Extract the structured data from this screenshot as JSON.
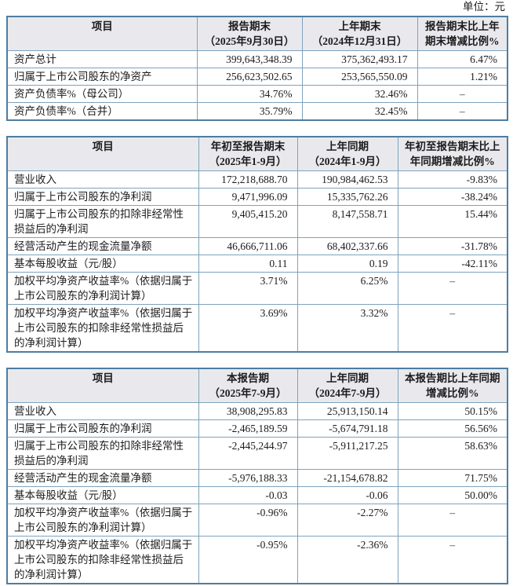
{
  "unit_label": "单位：元",
  "colors": {
    "border_outer": "#4e7da0",
    "border_inner": "#7fa2bc",
    "header_bg": "#e9e9ed",
    "text": "#1c1c1c"
  },
  "tables": [
    {
      "name": "报告期末资产状况",
      "header": [
        [
          "项目"
        ],
        [
          "报告期末",
          "（2025年9月30日）"
        ],
        [
          "上年期末",
          "（2024年12月31日）"
        ],
        [
          "报告期末比上年",
          "期末增减比例%"
        ]
      ],
      "rows": [
        [
          "资产总计",
          "399,643,348.39",
          "375,362,493.17",
          "6.47%"
        ],
        [
          "归属于上市公司股东的净资产",
          "256,623,502.65",
          "253,565,550.09",
          "1.21%"
        ],
        [
          "资产负债率%（母公司）",
          "34.76%",
          "32.46%",
          "–"
        ],
        [
          "资产负债率%（合并）",
          "35.79%",
          "32.45%",
          "–"
        ]
      ]
    },
    {
      "name": "年初至报告期末经营成果",
      "header": [
        [
          "项目"
        ],
        [
          "年初至报告期末",
          "（2025年1-9月）"
        ],
        [
          "上年同期",
          "（2024年1-9月）"
        ],
        [
          "年初至报告期末比上",
          "年同期增减比例%"
        ]
      ],
      "rows": [
        [
          "营业收入",
          "172,218,688.70",
          "190,984,462.53",
          "-9.83%"
        ],
        [
          "归属于上市公司股东的净利润",
          "9,471,996.09",
          "15,335,762.26",
          "-38.24%"
        ],
        [
          "归属于上市公司股东的扣除非经常性损益后的净利润",
          "9,405,415.20",
          "8,147,558.71",
          "15.44%"
        ],
        [
          "经营活动产生的现金流量净额",
          "46,666,711.06",
          "68,402,337.66",
          "-31.78%"
        ],
        [
          "基本每股收益（元/股）",
          "0.11",
          "0.19",
          "-42.11%"
        ],
        [
          "加权平均净资产收益率%（依据归属于上市公司股东的净利润计算）",
          "3.71%",
          "6.25%",
          "–"
        ],
        [
          "加权平均净资产收益率%（依据归属于上市公司股东的扣除非经常性损益后的净利润计算）",
          "3.69%",
          "3.32%",
          "–"
        ]
      ]
    },
    {
      "name": "本报告期经营成果",
      "header": [
        [
          "项目"
        ],
        [
          "本报告期",
          "（2025年7-9月）"
        ],
        [
          "上年同期",
          "（2024年7-9月）"
        ],
        [
          "本报告期比上年同期",
          "增减比例%"
        ]
      ],
      "rows": [
        [
          "营业收入",
          "38,908,295.83",
          "25,913,150.14",
          "50.15%"
        ],
        [
          "归属于上市公司股东的净利润",
          "-2,465,189.59",
          "-5,674,791.18",
          "56.56%"
        ],
        [
          "归属于上市公司股东的扣除非经常性损益后的净利润",
          "-2,445,244.97",
          "-5,911,217.25",
          "58.63%"
        ],
        [
          "经营活动产生的现金流量净额",
          "-5,976,188.33",
          "-21,154,678.82",
          "71.75%"
        ],
        [
          "基本每股收益（元/股）",
          "-0.03",
          "-0.06",
          "50.00%"
        ],
        [
          "加权平均净资产收益率%（依据归属于上市公司股东的净利润计算）",
          "-0.96%",
          "-2.27%",
          "–"
        ],
        [
          "加权平均净资产收益率%（依据归属于上市公司股东的扣除非经常性损益后的净利润计算）",
          "-0.95%",
          "-2.36%",
          "–"
        ]
      ]
    }
  ]
}
